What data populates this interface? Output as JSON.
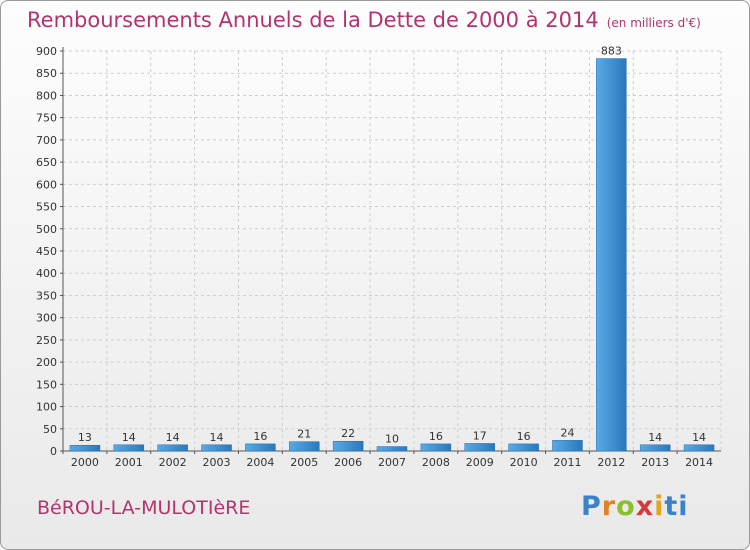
{
  "header": {
    "title": "Remboursements Annuels de la Dette de 2000 à 2014",
    "unit": "(en milliers d'€)"
  },
  "footer": {
    "place": "BéROU-LA-MULOTIèRE",
    "logo_letters": [
      "P",
      "r",
      "o",
      "x",
      "i",
      "ti"
    ]
  },
  "colors": {
    "title": "#b5336c",
    "bar_light": "#5aaae6",
    "bar_dark": "#2a78bc",
    "grid": "#cfcfcf"
  },
  "chart_data": {
    "type": "bar",
    "title": "Remboursements Annuels de la Dette de 2000 à 2014",
    "unit": "(en milliers d'€)",
    "categories": [
      "2000",
      "2001",
      "2002",
      "2003",
      "2004",
      "2005",
      "2006",
      "2007",
      "2008",
      "2009",
      "2010",
      "2011",
      "2012",
      "2013",
      "2014"
    ],
    "values": [
      13,
      14,
      14,
      14,
      16,
      21,
      22,
      10,
      16,
      17,
      16,
      24,
      883,
      14,
      14
    ],
    "ylim": [
      0,
      900
    ],
    "yticks": [
      0,
      50,
      100,
      150,
      200,
      250,
      300,
      350,
      400,
      450,
      500,
      550,
      600,
      650,
      700,
      750,
      800,
      850,
      900
    ],
    "grid": true,
    "data_labels": true
  }
}
